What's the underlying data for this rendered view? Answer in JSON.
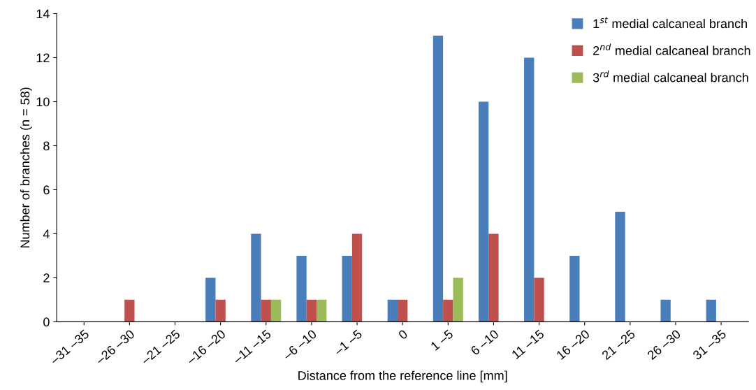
{
  "chart_data": {
    "type": "bar",
    "xlabel": "Distance from the reference line [mm]",
    "ylabel": "Number of branches (n = 58)",
    "categories": [
      "–31 –35",
      "–26 –30",
      "–21 –25",
      "–16 –20",
      "–11 –15",
      "–6 –10",
      "–1 –5",
      "0",
      "1 –5",
      "6 –10",
      "11 –15",
      "16 –20",
      "21 –25",
      "26 –30",
      "31 –35"
    ],
    "series": [
      {
        "name": "1$^{st}$ medial calcaneal branch",
        "color": "#4a7ebb",
        "values": [
          0,
          0,
          0,
          2,
          4,
          3,
          3,
          1,
          13,
          10,
          12,
          3,
          5,
          1,
          1
        ]
      },
      {
        "name": "2$^{nd}$ medial calcaneal branch",
        "color": "#c0504d",
        "values": [
          0,
          1,
          0,
          1,
          1,
          1,
          4,
          1,
          1,
          4,
          2,
          0,
          0,
          0,
          0
        ]
      },
      {
        "name": "3$^{rd}$ medial calcaneal branch",
        "color": "#9bbb59",
        "values": [
          0,
          0,
          0,
          0,
          1,
          1,
          0,
          0,
          2,
          0,
          0,
          0,
          0,
          0,
          0
        ]
      }
    ],
    "ylim": [
      0,
      14
    ],
    "yticks": [
      0,
      2,
      4,
      6,
      8,
      10,
      12,
      14
    ],
    "grid": false,
    "legend": "top right"
  }
}
